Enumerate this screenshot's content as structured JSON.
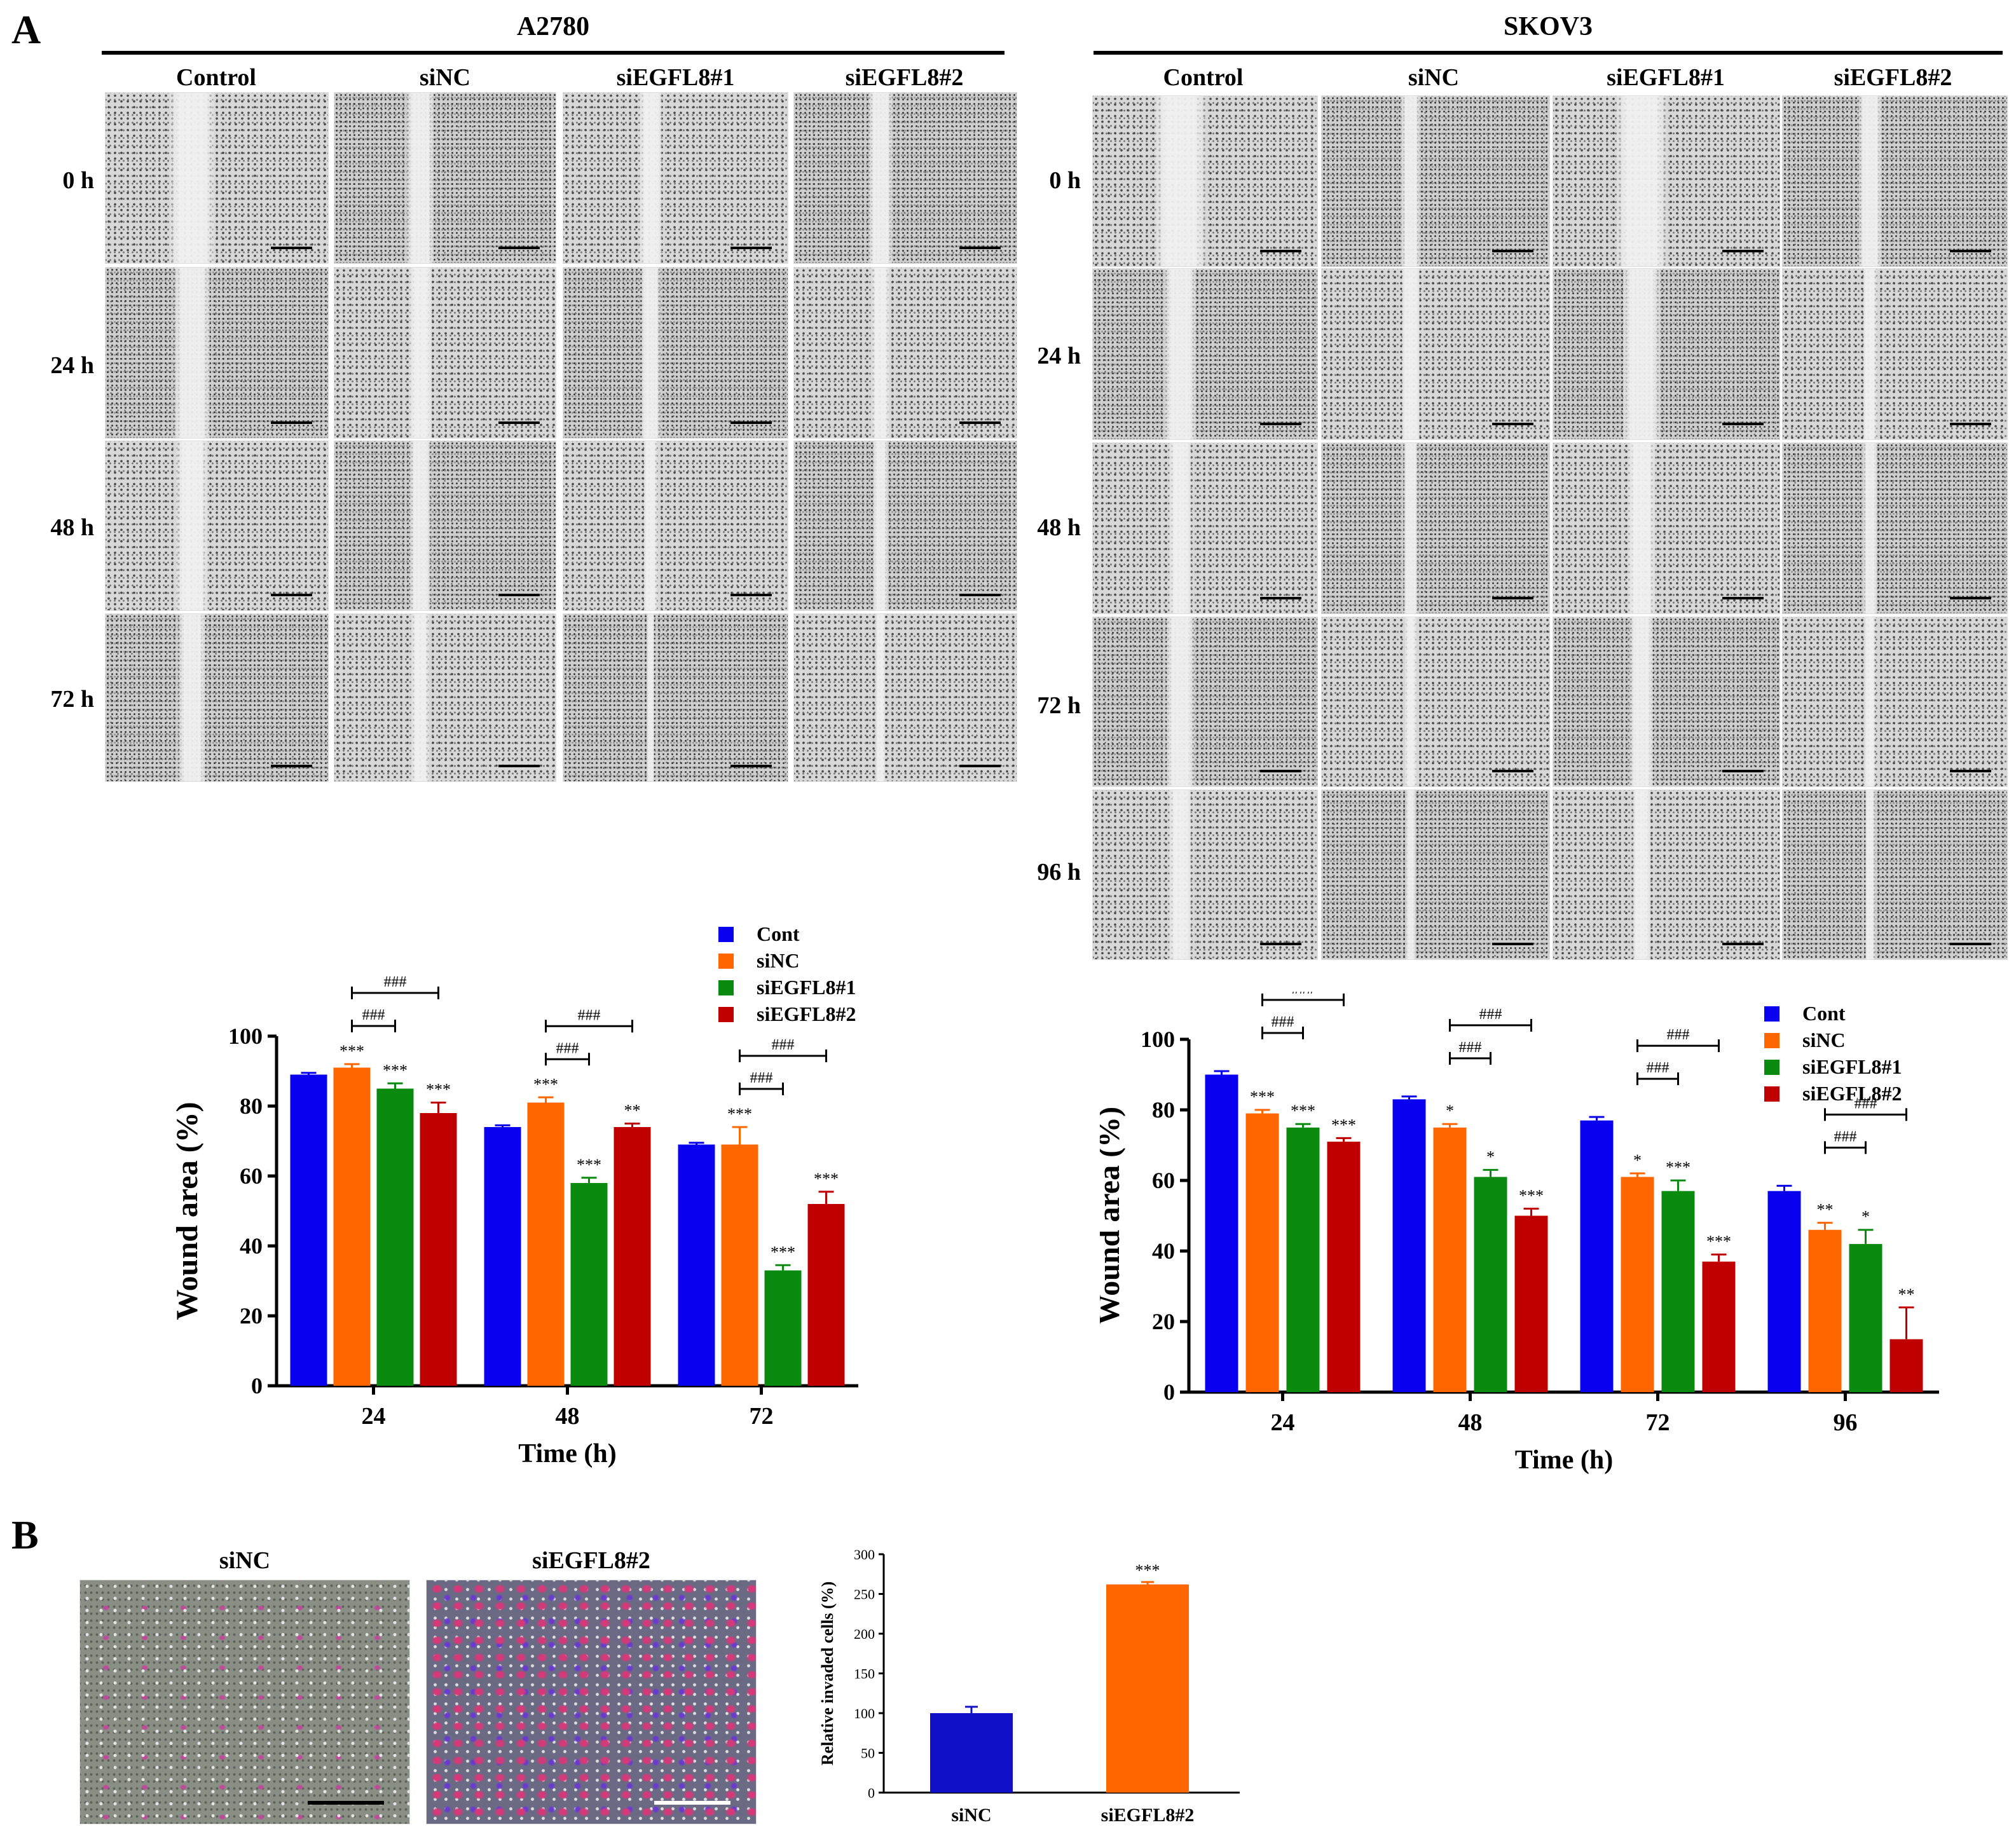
{
  "panel_labels": {
    "a": "A",
    "b": "B"
  },
  "cell_lines": {
    "a2780": "A2780",
    "skov3": "SKOV3"
  },
  "groups": [
    "Control",
    "siNC",
    "siEGFL8#1",
    "siEGFL8#2"
  ],
  "timepoints_a2780": [
    "0 h",
    "24 h",
    "48 h",
    "72 h"
  ],
  "timepoints_skov3": [
    "0 h",
    "24 h",
    "48 h",
    "72 h",
    "96 h"
  ],
  "invasion_images": {
    "left": "siNC",
    "right": "siEGFL8#2"
  },
  "colors": {
    "cont": "#0a00f0",
    "sinc": "#ff6600",
    "si1": "#0b8a10",
    "si2": "#c00000",
    "inv_sinc": "#1010c8",
    "inv_si2": "#ff6600"
  },
  "chart_data": [
    {
      "type": "bar",
      "id": "a2780-wound",
      "categories": [
        "24",
        "48",
        "72"
      ],
      "xlabel": "Time (h)",
      "ylabel": "Wound area (%)",
      "ylim": [
        0,
        100
      ],
      "yticks": [
        "0",
        "20",
        "40",
        "60",
        "80",
        "100"
      ],
      "legend": [
        "Cont",
        "siNC",
        "siEGFL8#1",
        "siEGFL8#2"
      ],
      "series": [
        {
          "name": "Cont",
          "values": [
            89,
            74,
            69
          ],
          "errors": [
            0.5,
            0.5,
            0.5
          ],
          "stars": [
            "",
            "",
            ""
          ]
        },
        {
          "name": "siNC",
          "values": [
            91,
            81,
            69
          ],
          "errors": [
            1,
            1.5,
            5
          ],
          "stars": [
            "***",
            "***",
            "***"
          ]
        },
        {
          "name": "siEGFL8#1",
          "values": [
            85,
            58,
            33
          ],
          "errors": [
            1.5,
            1.5,
            1.5
          ],
          "stars": [
            "***",
            "***",
            "***"
          ]
        },
        {
          "name": "siEGFL8#2",
          "values": [
            78,
            74,
            52
          ],
          "errors": [
            3,
            1,
            3.5
          ],
          "stars": [
            "***",
            "**",
            "***"
          ]
        }
      ],
      "hash_label": "###"
    },
    {
      "type": "bar",
      "id": "skov3-wound",
      "categories": [
        "24",
        "48",
        "72",
        "96"
      ],
      "xlabel": "Time (h)",
      "ylabel": "Wound area (%)",
      "ylim": [
        0,
        100
      ],
      "yticks": [
        "0",
        "20",
        "40",
        "60",
        "80",
        "100"
      ],
      "legend": [
        "Cont",
        "siNC",
        "siEGFL8#1",
        "siEGFL8#2"
      ],
      "series": [
        {
          "name": "Cont",
          "values": [
            90,
            83,
            77,
            57
          ],
          "errors": [
            1,
            0.8,
            1,
            1.5
          ],
          "stars": [
            "",
            "",
            "",
            ""
          ]
        },
        {
          "name": "siNC",
          "values": [
            79,
            75,
            61,
            46
          ],
          "errors": [
            1,
            1,
            1,
            2
          ],
          "stars": [
            "***",
            "*",
            "*",
            "**"
          ]
        },
        {
          "name": "siEGFL8#1",
          "values": [
            75,
            61,
            57,
            42
          ],
          "errors": [
            1,
            2,
            3,
            4
          ],
          "stars": [
            "***",
            "*",
            "***",
            "*"
          ]
        },
        {
          "name": "siEGFL8#2",
          "values": [
            71,
            50,
            37,
            15
          ],
          "errors": [
            1,
            2,
            2,
            9
          ],
          "stars": [
            "***",
            "***",
            "***",
            "**"
          ]
        }
      ],
      "hash_label": "###"
    },
    {
      "type": "bar",
      "id": "invasion",
      "categories": [
        "siNC",
        "siEGFL8#2"
      ],
      "ylabel": "Relative invaded cells (%)",
      "ylim": [
        0,
        300
      ],
      "yticks": [
        "0",
        "50",
        "100",
        "150",
        "200",
        "250",
        "300"
      ],
      "values": [
        100,
        262
      ],
      "errors": [
        8,
        3
      ],
      "stars": [
        "",
        "***"
      ]
    }
  ]
}
